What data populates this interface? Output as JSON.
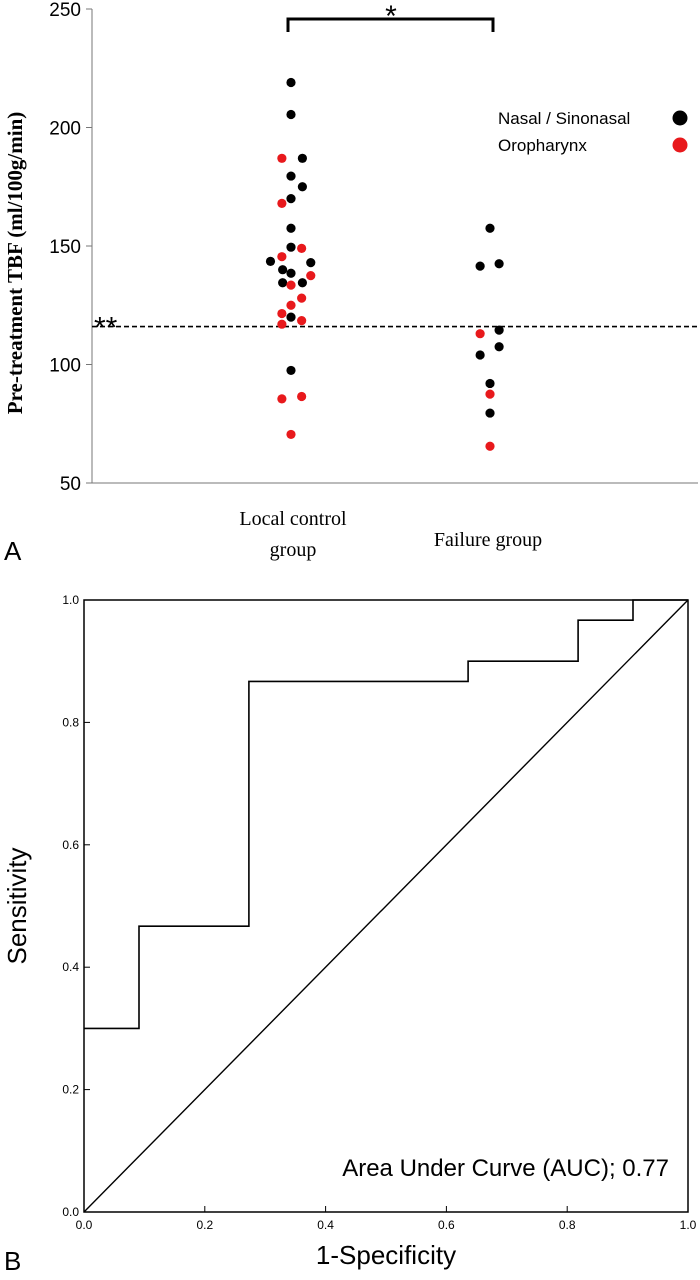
{
  "chart_data": [
    {
      "panel": "A",
      "type": "scatter",
      "ylabel": "Pre-treatment TBF (ml/100g/min)",
      "ylim": [
        50,
        250
      ],
      "yticks": [
        50,
        100,
        150,
        200,
        250
      ],
      "group_labels": [
        {
          "line1": "Local control",
          "line2": "group"
        },
        {
          "line1": "Failure group",
          "line2": ""
        }
      ],
      "legend": [
        {
          "label": "Nasal / Sinonasal",
          "color": "#000000"
        },
        {
          "label": "Oropharynx",
          "color": "#e8191c"
        }
      ],
      "significance": {
        "bracket": "*",
        "threshold": "**"
      },
      "threshold_value": 116,
      "series": [
        {
          "name": "Nasal / Sinonasal",
          "color": "#000000",
          "points": [
            {
              "group": 0,
              "offset": -0.54,
              "y": 143.5
            },
            {
              "group": 0,
              "offset": -0.22,
              "y": 140
            },
            {
              "group": 0,
              "offset": -0.22,
              "y": 134.5
            },
            {
              "group": 0,
              "offset": 0,
              "y": 219
            },
            {
              "group": 0,
              "offset": 0,
              "y": 205.5
            },
            {
              "group": 0,
              "offset": 0,
              "y": 179.5
            },
            {
              "group": 0,
              "offset": 0,
              "y": 170
            },
            {
              "group": 0,
              "offset": 0,
              "y": 157.5
            },
            {
              "group": 0,
              "offset": 0,
              "y": 149.5
            },
            {
              "group": 0,
              "offset": 0,
              "y": 138.5
            },
            {
              "group": 0,
              "offset": 0,
              "y": 120
            },
            {
              "group": 0,
              "offset": 0,
              "y": 97.5
            },
            {
              "group": 0,
              "offset": 0.3,
              "y": 187
            },
            {
              "group": 0,
              "offset": 0.3,
              "y": 175
            },
            {
              "group": 0,
              "offset": 0.3,
              "y": 134.5
            },
            {
              "group": 0,
              "offset": 0.52,
              "y": 143
            },
            {
              "group": 1,
              "offset": -0.26,
              "y": 141.5
            },
            {
              "group": 1,
              "offset": -0.26,
              "y": 104
            },
            {
              "group": 1,
              "offset": 0,
              "y": 157.5
            },
            {
              "group": 1,
              "offset": 0,
              "y": 92
            },
            {
              "group": 1,
              "offset": 0,
              "y": 79.5
            },
            {
              "group": 1,
              "offset": 0.24,
              "y": 142.5
            },
            {
              "group": 1,
              "offset": 0.24,
              "y": 114.5
            },
            {
              "group": 1,
              "offset": 0.24,
              "y": 107.5
            }
          ]
        },
        {
          "name": "Oropharynx",
          "color": "#e8191c",
          "points": [
            {
              "group": 0,
              "offset": -0.24,
              "y": 187
            },
            {
              "group": 0,
              "offset": -0.24,
              "y": 168
            },
            {
              "group": 0,
              "offset": -0.24,
              "y": 145.5
            },
            {
              "group": 0,
              "offset": -0.24,
              "y": 121.5
            },
            {
              "group": 0,
              "offset": -0.24,
              "y": 117
            },
            {
              "group": 0,
              "offset": -0.24,
              "y": 85.5
            },
            {
              "group": 0,
              "offset": 0,
              "y": 133.5
            },
            {
              "group": 0,
              "offset": 0,
              "y": 125
            },
            {
              "group": 0,
              "offset": 0,
              "y": 70.5
            },
            {
              "group": 0,
              "offset": 0.28,
              "y": 149
            },
            {
              "group": 0,
              "offset": 0.28,
              "y": 128
            },
            {
              "group": 0,
              "offset": 0.28,
              "y": 118.5
            },
            {
              "group": 0,
              "offset": 0.28,
              "y": 86.5
            },
            {
              "group": 0,
              "offset": 0.52,
              "y": 137.5
            },
            {
              "group": 1,
              "offset": -0.26,
              "y": 113
            },
            {
              "group": 1,
              "offset": 0,
              "y": 87.5
            },
            {
              "group": 1,
              "offset": 0,
              "y": 65.5
            }
          ]
        }
      ]
    },
    {
      "panel": "B",
      "type": "line",
      "xlabel": "1-Specificity",
      "ylabel": "Sensitivity",
      "xlim": [
        0,
        1
      ],
      "ylim": [
        0,
        1
      ],
      "xticks": [
        "0.0",
        "0.2",
        "0.4",
        "0.6",
        "0.8",
        "1.0"
      ],
      "yticks": [
        "0.0",
        "0.2",
        "0.4",
        "0.6",
        "0.8",
        "1.0"
      ],
      "annotation": "Area Under Curve (AUC); 0.77",
      "series": [
        {
          "name": "ROC curve",
          "points": [
            [
              0,
              0.3
            ],
            [
              0.091,
              0.3
            ],
            [
              0.091,
              0.467
            ],
            [
              0.273,
              0.467
            ],
            [
              0.273,
              0.867
            ],
            [
              0.636,
              0.867
            ],
            [
              0.636,
              0.9
            ],
            [
              0.818,
              0.9
            ],
            [
              0.818,
              0.967
            ],
            [
              0.909,
              0.967
            ],
            [
              0.909,
              1.0
            ],
            [
              1.0,
              1.0
            ]
          ]
        },
        {
          "name": "Reference line",
          "points": [
            [
              0,
              0
            ],
            [
              1,
              1
            ]
          ]
        }
      ]
    }
  ]
}
